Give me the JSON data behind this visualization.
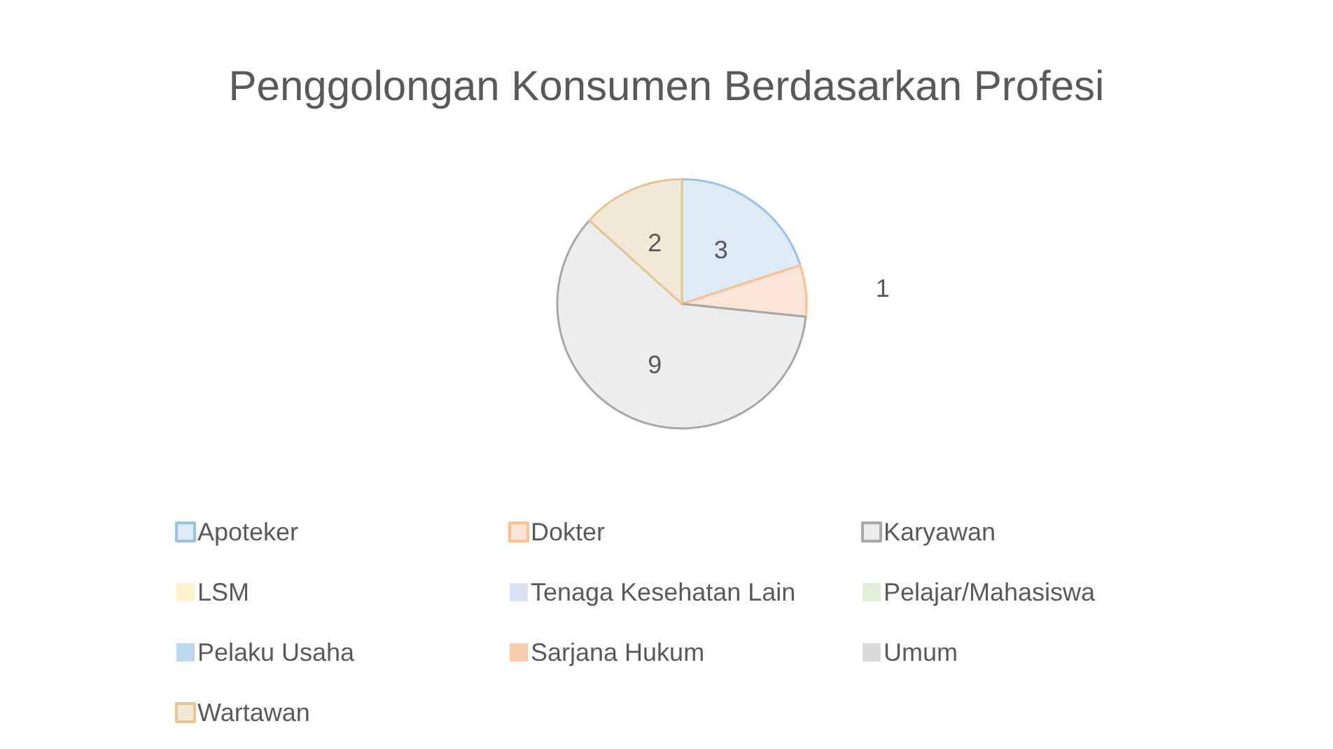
{
  "chart_data": {
    "type": "pie",
    "title": "Penggolongan Konsumen Berdasarkan Profesi",
    "categories": [
      "Apoteker",
      "Dokter",
      "Karyawan",
      "LSM",
      "Tenaga Kesehatan Lain",
      "Pelajar/Mahasiswa",
      "Pelaku Usaha",
      "Sarjana Hukum",
      "Umum",
      "Wartawan"
    ],
    "values": [
      3,
      1,
      9,
      0,
      0,
      0,
      0,
      0,
      0,
      2
    ],
    "colors": [
      "#deebf7",
      "#fbe5d6",
      "#ededed",
      "#fff2cc",
      "#dae3f3",
      "#e2f0d9",
      "#bdd7ee",
      "#f8cbad",
      "#d9d9d9",
      "#f2e8d8"
    ],
    "data_labels": true,
    "legend": "bottom"
  }
}
